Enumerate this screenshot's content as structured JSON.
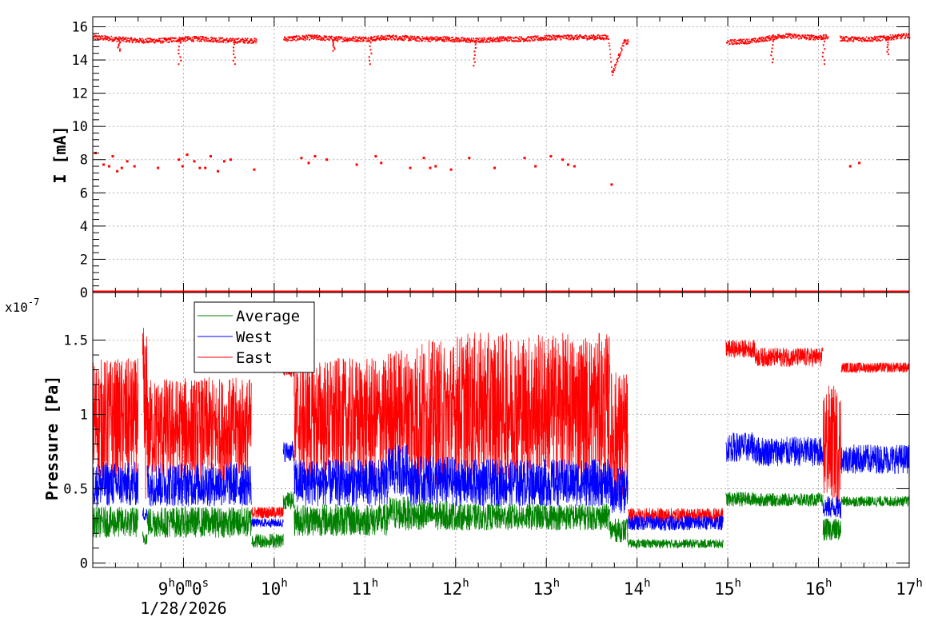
{
  "colors": {
    "frame": "#000000",
    "grid": "#b0b0b0",
    "current": "#ff0000",
    "average": "#008000",
    "west": "#0000ff",
    "east": "#ff0000",
    "background": "#ffffff"
  },
  "chart_data": [
    {
      "id": "current-panel",
      "type": "scatter",
      "title": "",
      "xlabel": "",
      "ylabel": "I [mA]",
      "xlim": [
        8.0,
        17.0
      ],
      "ylim": [
        0,
        16.6
      ],
      "yticks": [
        0,
        2,
        4,
        6,
        8,
        10,
        12,
        14,
        16
      ],
      "ytick_labels": [
        "0",
        "2",
        "4",
        "6",
        "8",
        "10",
        "12",
        "14",
        "16"
      ],
      "grid": true,
      "series": [
        {
          "color": "#ff0000",
          "main_band": [
            [
              8.0,
              15.4
            ],
            [
              8.25,
              15.3
            ],
            [
              8.5,
              15.2
            ],
            [
              8.75,
              15.2
            ],
            [
              9.0,
              15.3
            ],
            [
              9.25,
              15.3
            ],
            [
              9.5,
              15.2
            ],
            [
              9.8,
              15.2
            ],
            [
              10.1,
              15.3
            ],
            [
              10.4,
              15.4
            ],
            [
              10.7,
              15.3
            ],
            [
              11.0,
              15.3
            ],
            [
              11.3,
              15.4
            ],
            [
              11.6,
              15.3
            ],
            [
              11.9,
              15.3
            ],
            [
              12.2,
              15.2
            ],
            [
              12.5,
              15.3
            ],
            [
              12.8,
              15.3
            ],
            [
              13.1,
              15.4
            ],
            [
              13.4,
              15.4
            ],
            [
              13.68,
              15.4
            ],
            [
              13.72,
              13.2
            ],
            [
              13.85,
              15.1
            ],
            [
              15.0,
              15.1
            ],
            [
              15.3,
              15.2
            ],
            [
              15.6,
              15.5
            ],
            [
              15.9,
              15.4
            ],
            [
              16.1,
              15.4
            ],
            [
              16.3,
              15.3
            ],
            [
              16.6,
              15.3
            ],
            [
              17.0,
              15.5
            ]
          ],
          "gaps": [
            [
              9.8,
              10.1
            ],
            [
              13.9,
              14.98
            ],
            [
              16.1,
              16.23
            ]
          ],
          "dips": [
            [
              8.28,
              14.6
            ],
            [
              8.95,
              13.8
            ],
            [
              9.55,
              13.8
            ],
            [
              10.65,
              14.6
            ],
            [
              11.05,
              13.8
            ],
            [
              12.2,
              13.7
            ],
            [
              15.48,
              13.9
            ],
            [
              16.05,
              13.8
            ],
            [
              16.75,
              14.4
            ]
          ],
          "lower_points": [
            [
              8.03,
              8.4
            ],
            [
              8.12,
              7.7
            ],
            [
              8.18,
              7.6
            ],
            [
              8.22,
              8.2
            ],
            [
              8.27,
              7.3
            ],
            [
              8.32,
              7.5
            ],
            [
              8.38,
              7.9
            ],
            [
              8.46,
              7.6
            ],
            [
              8.72,
              7.5
            ],
            [
              8.95,
              8.0
            ],
            [
              8.99,
              7.6
            ],
            [
              9.04,
              8.3
            ],
            [
              9.12,
              7.9
            ],
            [
              9.18,
              7.5
            ],
            [
              9.24,
              7.5
            ],
            [
              9.3,
              8.2
            ],
            [
              9.38,
              7.3
            ],
            [
              9.45,
              7.9
            ],
            [
              9.52,
              8.0
            ],
            [
              9.78,
              7.4
            ],
            [
              10.3,
              8.1
            ],
            [
              10.38,
              7.8
            ],
            [
              10.45,
              8.2
            ],
            [
              10.58,
              8.0
            ],
            [
              10.91,
              7.7
            ],
            [
              11.12,
              8.2
            ],
            [
              11.18,
              7.8
            ],
            [
              11.5,
              7.5
            ],
            [
              11.65,
              8.1
            ],
            [
              11.72,
              7.5
            ],
            [
              11.78,
              7.6
            ],
            [
              11.95,
              7.4
            ],
            [
              12.15,
              8.1
            ],
            [
              12.43,
              7.5
            ],
            [
              12.76,
              8.1
            ],
            [
              12.88,
              7.6
            ],
            [
              13.05,
              8.2
            ],
            [
              13.18,
              8.0
            ],
            [
              13.24,
              7.7
            ],
            [
              13.31,
              7.6
            ],
            [
              13.72,
              6.5
            ],
            [
              16.35,
              7.6
            ],
            [
              16.45,
              7.8
            ]
          ],
          "zero_line": 0.0
        }
      ]
    },
    {
      "id": "pressure-panel",
      "type": "line",
      "title": "",
      "xlabel": "",
      "ylabel": "Pressure [Pa]",
      "y_multiplier_label": "x10",
      "y_multiplier_exponent": "-7",
      "xlim": [
        8.0,
        17.0
      ],
      "ylim": [
        -0.03,
        1.82
      ],
      "yticks": [
        0,
        0.5,
        1,
        1.5
      ],
      "ytick_labels": [
        "0",
        "0.5",
        "1",
        "1.5"
      ],
      "grid": true,
      "legend_position": "top-left",
      "series": [
        {
          "name": "Average",
          "color": "#008000",
          "segments": [
            [
              8.0,
              8.5,
              0.17,
              0.38
            ],
            [
              8.55,
              8.6,
              0.12,
              0.22
            ],
            [
              8.6,
              9.75,
              0.17,
              0.38
            ],
            [
              9.75,
              10.1,
              0.1,
              0.2
            ],
            [
              10.1,
              10.22,
              0.36,
              0.48
            ],
            [
              10.22,
              11.25,
              0.18,
              0.4
            ],
            [
              11.25,
              11.5,
              0.22,
              0.45
            ],
            [
              11.5,
              12.0,
              0.22,
              0.42
            ],
            [
              12.0,
              13.7,
              0.22,
              0.4
            ],
            [
              13.7,
              13.9,
              0.14,
              0.3
            ],
            [
              13.9,
              14.95,
              0.1,
              0.16
            ],
            [
              14.98,
              15.3,
              0.38,
              0.48
            ],
            [
              15.3,
              16.05,
              0.38,
              0.47
            ],
            [
              16.05,
              16.25,
              0.15,
              0.3
            ],
            [
              16.25,
              17.0,
              0.38,
              0.45
            ]
          ]
        },
        {
          "name": "West",
          "color": "#0000ff",
          "segments": [
            [
              8.0,
              8.5,
              0.38,
              0.68
            ],
            [
              8.55,
              8.6,
              0.28,
              0.38
            ],
            [
              8.6,
              9.75,
              0.38,
              0.68
            ],
            [
              9.75,
              10.1,
              0.24,
              0.3
            ],
            [
              10.1,
              10.22,
              0.68,
              0.82
            ],
            [
              10.22,
              11.25,
              0.38,
              0.7
            ],
            [
              11.25,
              11.5,
              0.45,
              0.8
            ],
            [
              11.5,
              12.0,
              0.38,
              0.72
            ],
            [
              12.0,
              13.7,
              0.38,
              0.7
            ],
            [
              13.7,
              13.9,
              0.33,
              0.65
            ],
            [
              13.9,
              14.95,
              0.22,
              0.32
            ],
            [
              14.98,
              15.3,
              0.68,
              0.88
            ],
            [
              15.3,
              16.05,
              0.65,
              0.85
            ],
            [
              16.05,
              16.25,
              0.3,
              0.45
            ],
            [
              16.25,
              17.0,
              0.6,
              0.8
            ]
          ]
        },
        {
          "name": "East",
          "color": "#ff0000",
          "segments": [
            [
              8.0,
              8.5,
              0.55,
              1.38
            ],
            [
              8.55,
              8.6,
              0.4,
              1.6
            ],
            [
              8.6,
              9.75,
              0.55,
              1.25
            ],
            [
              9.75,
              10.1,
              0.3,
              0.38
            ],
            [
              10.1,
              10.22,
              1.25,
              1.38
            ],
            [
              10.22,
              11.25,
              0.55,
              1.38
            ],
            [
              11.25,
              11.5,
              0.6,
              1.45
            ],
            [
              11.5,
              12.0,
              0.5,
              1.5
            ],
            [
              12.0,
              13.7,
              0.55,
              1.55
            ],
            [
              13.7,
              13.9,
              0.4,
              1.3
            ],
            [
              13.9,
              14.95,
              0.27,
              0.37
            ],
            [
              14.98,
              15.3,
              1.38,
              1.5
            ],
            [
              15.3,
              16.05,
              1.32,
              1.45
            ],
            [
              16.05,
              16.25,
              0.4,
              1.2
            ],
            [
              16.25,
              17.0,
              1.28,
              1.35
            ]
          ]
        }
      ]
    }
  ],
  "x_axis": {
    "ticks": [
      9,
      10,
      11,
      12,
      13,
      14,
      15,
      16,
      17
    ],
    "tick_labels": [
      {
        "main": "9",
        "unit": "h",
        "rest": "0",
        "unit2": "m",
        "rest2": "0",
        "unit3": "s"
      },
      {
        "main": "10",
        "unit": "h"
      },
      {
        "main": "11",
        "unit": "h"
      },
      {
        "main": "12",
        "unit": "h"
      },
      {
        "main": "13",
        "unit": "h"
      },
      {
        "main": "14",
        "unit": "h"
      },
      {
        "main": "15",
        "unit": "h"
      },
      {
        "main": "16",
        "unit": "h"
      },
      {
        "main": "17",
        "unit": "h"
      }
    ],
    "date_label": "1/28/2026"
  },
  "legend": {
    "entries": [
      {
        "label": "Average",
        "color": "#008000"
      },
      {
        "label": "West",
        "color": "#0000ff"
      },
      {
        "label": "East",
        "color": "#ff0000"
      }
    ]
  }
}
